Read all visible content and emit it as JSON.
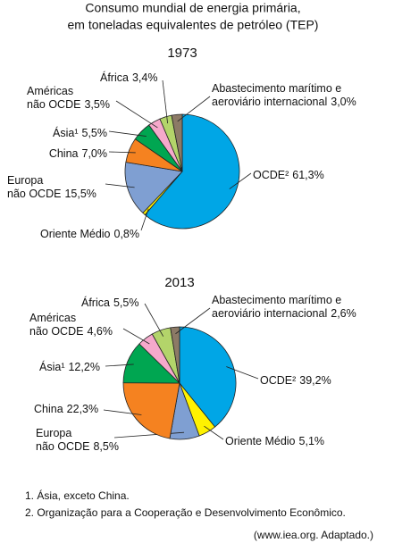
{
  "title": [
    "Consumo mundial de energia primária,",
    "em toneladas equivalentes de petróleo (TEP)"
  ],
  "chart_data": [
    {
      "type": "pie",
      "title": "1973",
      "categories": [
        [
          "OCDE²"
        ],
        [
          "Oriente Médio"
        ],
        [
          "Europa",
          "não OCDE"
        ],
        [
          "China"
        ],
        [
          "Ásia¹"
        ],
        [
          "Américas",
          "não OCDE"
        ],
        [
          "África"
        ],
        [
          "Abastecimento marítimo e",
          "aeroviário internacional"
        ]
      ],
      "values": [
        61.3,
        0.8,
        15.5,
        7.0,
        5.5,
        3.5,
        3.4,
        3.0
      ],
      "value_labels": [
        "61,3%",
        "0,8%",
        "15,5%",
        "7,0%",
        "5,5%",
        "3,5%",
        "3,4%",
        "3,0%"
      ],
      "colors": [
        "#00a6e6",
        "#fff200",
        "#7f9fd2",
        "#f58220",
        "#00a651",
        "#f5a9cb",
        "#b3d46a",
        "#8c7a66"
      ]
    },
    {
      "type": "pie",
      "title": "2013",
      "categories": [
        [
          "OCDE²"
        ],
        [
          "Oriente Médio"
        ],
        [
          "Europa",
          "não OCDE"
        ],
        [
          "China"
        ],
        [
          "Ásia¹"
        ],
        [
          "Américas",
          "não OCDE"
        ],
        [
          "África"
        ],
        [
          "Abastecimento marítimo e",
          "aeroviário internacional"
        ]
      ],
      "values": [
        39.2,
        5.1,
        8.5,
        22.3,
        12.2,
        4.6,
        5.5,
        2.6
      ],
      "value_labels": [
        "39,2%",
        "5,1%",
        "8,5%",
        "22,3%",
        "12,2%",
        "4,6%",
        "5,5%",
        "2,6%"
      ],
      "colors": [
        "#00a6e6",
        "#fff200",
        "#7f9fd2",
        "#f58220",
        "#00a651",
        "#f5a9cb",
        "#b3d46a",
        "#8c7a66"
      ]
    }
  ],
  "footnotes": [
    "1. Ásia, exceto China.",
    "2. Organização para a Cooperação e Desenvolvimento Econômico."
  ],
  "source": "(www.iea.org. Adaptado.)"
}
